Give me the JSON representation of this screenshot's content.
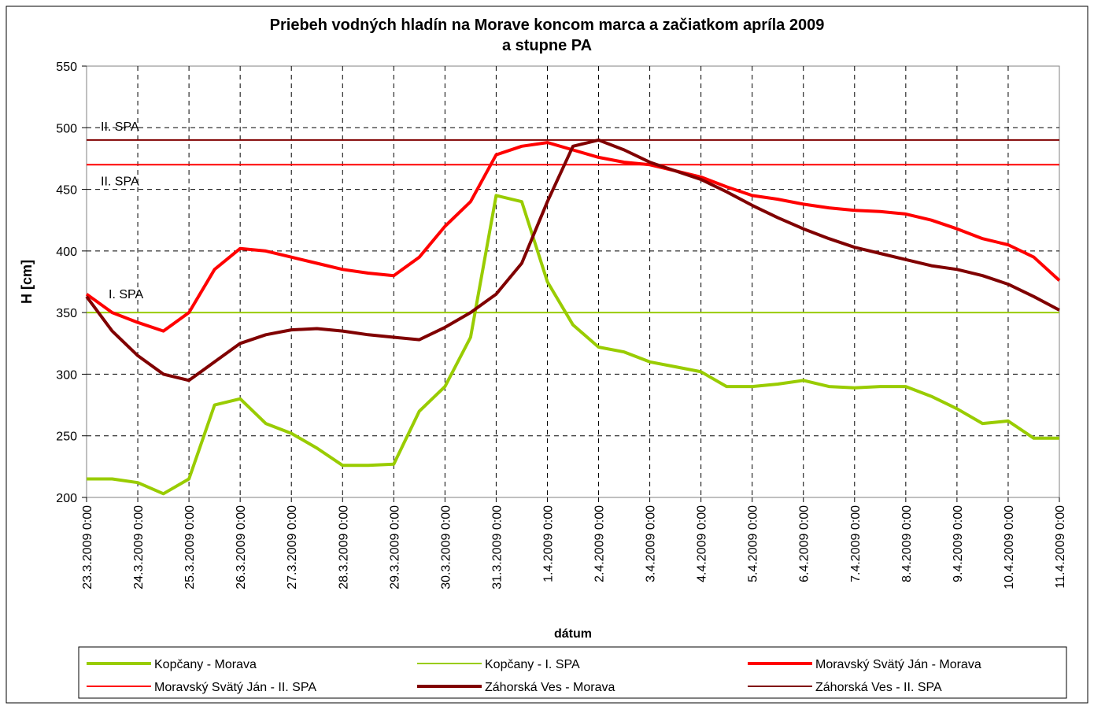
{
  "chart_data": {
    "type": "line",
    "title": [
      "Priebeh vodných hladín na Morave koncom marca a začiatkom apríla 2009",
      "a stupne PA"
    ],
    "x_label": "dátum",
    "y_label": "H [cm]",
    "categories": [
      "23.3.2009 0:00",
      null,
      "24.3.2009 0:00",
      null,
      "25.3.2009 0:00",
      null,
      "26.3.2009 0:00",
      null,
      "27.3.2009 0:00",
      null,
      "28.3.2009 0:00",
      null,
      "29.3.2009 0:00",
      null,
      "30.3.2009 0:00",
      null,
      "31.3.2009 0:00",
      null,
      "1.4.2009 0:00",
      null,
      "2.4.2009 0:00",
      null,
      "3.4.2009 0:00",
      null,
      "4.4.2009 0:00",
      null,
      "5.4.2009 0:00",
      null,
      "6.4.2009 0:00",
      null,
      "7.4.2009 0:00",
      null,
      "8.4.2009 0:00",
      null,
      "9.4.2009 0:00",
      null,
      "10.4.2009 0:00",
      null,
      "11.4.2009 0:00"
    ],
    "ylim": [
      200,
      550
    ],
    "yticks": [
      200,
      250,
      300,
      350,
      400,
      450,
      500,
      550
    ],
    "grid": true,
    "legend": "bottom",
    "series": [
      {
        "name": "Kopčany - Morava",
        "color": "#99cc00",
        "line_width": 4,
        "values": [
          215,
          215,
          212,
          203,
          215,
          275,
          280,
          260,
          252,
          240,
          226,
          226,
          227,
          270,
          290,
          330,
          445,
          440,
          375,
          340,
          322,
          318,
          310,
          306,
          302,
          290,
          290,
          292,
          295,
          290,
          289,
          290,
          290,
          282,
          272,
          260,
          262,
          248,
          248
        ]
      },
      {
        "name": "Kopčany - I. SPA",
        "color": "#99cc00",
        "line_width": 2,
        "values": [
          350,
          350,
          350,
          350,
          350,
          350,
          350,
          350,
          350,
          350,
          350,
          350,
          350,
          350,
          350,
          350,
          350,
          350,
          350,
          350,
          350,
          350,
          350,
          350,
          350,
          350,
          350,
          350,
          350,
          350,
          350,
          350,
          350,
          350,
          350,
          350,
          350,
          350,
          350
        ]
      },
      {
        "name": "Moravský Svätý Ján - Morava",
        "color": "#ff0000",
        "line_width": 4,
        "values": [
          365,
          350,
          342,
          335,
          350,
          385,
          402,
          400,
          395,
          390,
          385,
          382,
          380,
          395,
          420,
          440,
          478,
          485,
          488,
          482,
          476,
          472,
          470,
          465,
          460,
          452,
          445,
          442,
          438,
          435,
          433,
          432,
          430,
          425,
          418,
          410,
          405,
          395,
          376
        ]
      },
      {
        "name": "Moravský Svätý Ján - II. SPA",
        "color": "#ff0000",
        "line_width": 2,
        "values": [
          470,
          470,
          470,
          470,
          470,
          470,
          470,
          470,
          470,
          470,
          470,
          470,
          470,
          470,
          470,
          470,
          470,
          470,
          470,
          470,
          470,
          470,
          470,
          470,
          470,
          470,
          470,
          470,
          470,
          470,
          470,
          470,
          470,
          470,
          470,
          470,
          470,
          470,
          470
        ]
      },
      {
        "name": "Záhorská Ves - Morava",
        "color": "#800000",
        "line_width": 4,
        "values": [
          363,
          335,
          315,
          300,
          295,
          310,
          325,
          332,
          336,
          337,
          335,
          332,
          330,
          328,
          338,
          350,
          365,
          390,
          440,
          485,
          490,
          482,
          472,
          465,
          458,
          448,
          437,
          427,
          418,
          410,
          403,
          398,
          393,
          388,
          385,
          380,
          373,
          363,
          352
        ]
      },
      {
        "name": "Záhorská Ves - II. SPA",
        "color": "#800000",
        "line_width": 2,
        "values": [
          490,
          490,
          490,
          490,
          490,
          490,
          490,
          490,
          490,
          490,
          490,
          490,
          490,
          490,
          490,
          490,
          490,
          490,
          490,
          490,
          490,
          490,
          490,
          490,
          490,
          490,
          490,
          490,
          490,
          490,
          490,
          490,
          490,
          490,
          490,
          490,
          490,
          490,
          490
        ]
      }
    ],
    "annotations": [
      "II. SPA",
      "II. SPA",
      "I. SPA"
    ]
  }
}
